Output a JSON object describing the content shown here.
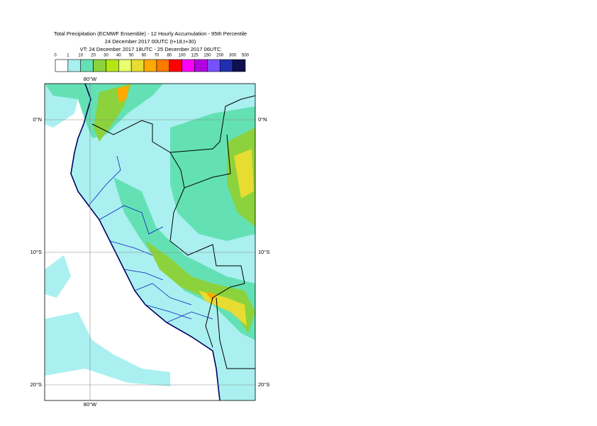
{
  "title": {
    "line1": "Total Precipitation (ECMWF Ensemble) - 12 Hourly Accumulation - 95th Percentile",
    "line2": "24 December 2017 00UTC (t+18,t+30)",
    "line3": "VT: 24 December 2017 18UTC - 25 December 2017 06UTC"
  },
  "legend": {
    "labels": [
      0,
      1,
      10,
      20,
      30,
      40,
      50,
      60,
      70,
      80,
      100,
      125,
      150,
      200,
      300,
      500
    ],
    "colors": [
      "#ffffff",
      "#aaf0f0",
      "#64e1b4",
      "#8cd23c",
      "#b4e614",
      "#e8ff6e",
      "#e6dc32",
      "#ffaa00",
      "#ff7800",
      "#ff0000",
      "#ff00ff",
      "#b400e0",
      "#7850ff",
      "#2030b0",
      "#101050"
    ]
  },
  "map": {
    "lat_labels": [
      "0°N",
      "10°S",
      "20°S"
    ],
    "lon_labels": [
      "80°W"
    ]
  }
}
